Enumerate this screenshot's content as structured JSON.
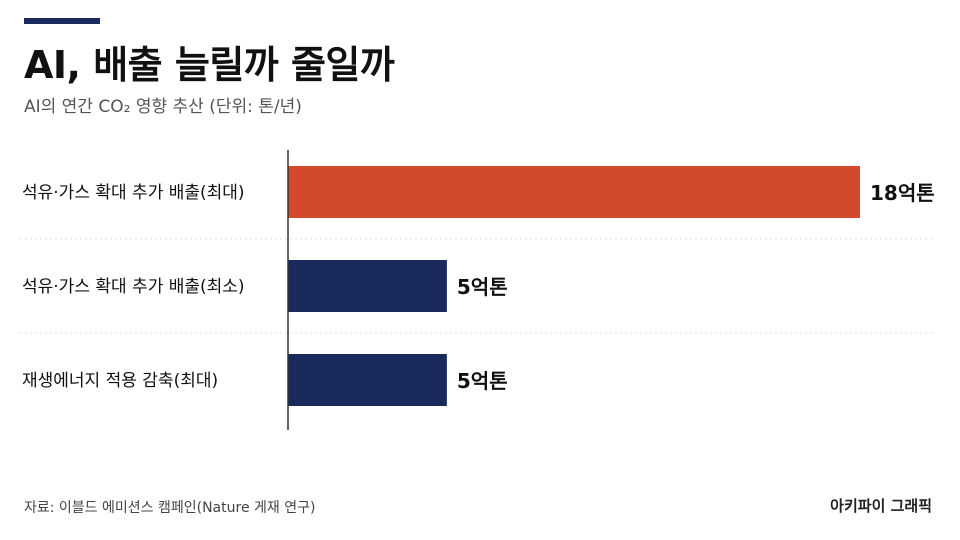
{
  "header": {
    "title": "AI, 배출 늘릴까 줄일까",
    "subtitle": "AI의 연간 CO₂ 영향 추산 (단위: 톤/년)"
  },
  "footer": {
    "source": "자료: 이블드 에미션스 캠페인(Nature 게재 연구)",
    "brand": "아키파이 그래픽"
  },
  "colors": {
    "accent": "#1b2a5c",
    "highlight": "#d24a2b",
    "bar": "#1b2a5c",
    "grid": "#dcdcdc"
  },
  "chart_data": {
    "type": "bar",
    "orientation": "horizontal",
    "categories": [
      "석유·가스 확대 추가 배출(최대)",
      "석유·가스 확대 추가 배출(최소)",
      "재생에너지 적용 감축(최대)"
    ],
    "values": [
      18,
      5,
      5
    ],
    "value_labels": [
      "18억톤",
      "5억톤",
      "5억톤"
    ],
    "highlight_index": 0,
    "xlim": [
      0,
      18
    ],
    "grid": true
  }
}
